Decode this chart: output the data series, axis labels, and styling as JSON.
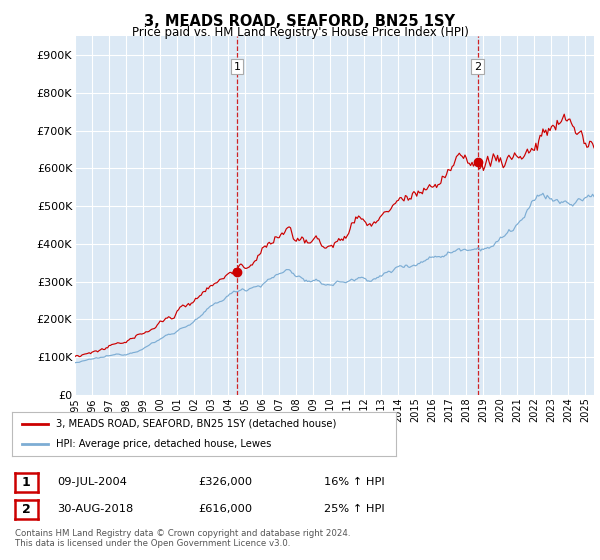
{
  "title": "3, MEADS ROAD, SEAFORD, BN25 1SY",
  "subtitle": "Price paid vs. HM Land Registry's House Price Index (HPI)",
  "ylabel_ticks": [
    "£0",
    "£100K",
    "£200K",
    "£300K",
    "£400K",
    "£500K",
    "£600K",
    "£700K",
    "£800K",
    "£900K"
  ],
  "ytick_values": [
    0,
    100000,
    200000,
    300000,
    400000,
    500000,
    600000,
    700000,
    800000,
    900000
  ],
  "ylim": [
    0,
    950000
  ],
  "xlim_start": 1995.0,
  "xlim_end": 2025.5,
  "line1_color": "#cc0000",
  "line2_color": "#7dadd4",
  "transaction1_x": 2004.52,
  "transaction1_y": 326000,
  "transaction2_x": 2018.66,
  "transaction2_y": 616000,
  "legend_line1": "3, MEADS ROAD, SEAFORD, BN25 1SY (detached house)",
  "legend_line2": "HPI: Average price, detached house, Lewes",
  "table_row1": [
    "1",
    "09-JUL-2004",
    "£326,000",
    "16% ↑ HPI"
  ],
  "table_row2": [
    "2",
    "30-AUG-2018",
    "£616,000",
    "25% ↑ HPI"
  ],
  "footnote": "Contains HM Land Registry data © Crown copyright and database right 2024.\nThis data is licensed under the Open Government Licence v3.0.",
  "bg_color": "#ffffff",
  "plot_bg_color": "#dce9f5",
  "grid_color": "#ffffff"
}
